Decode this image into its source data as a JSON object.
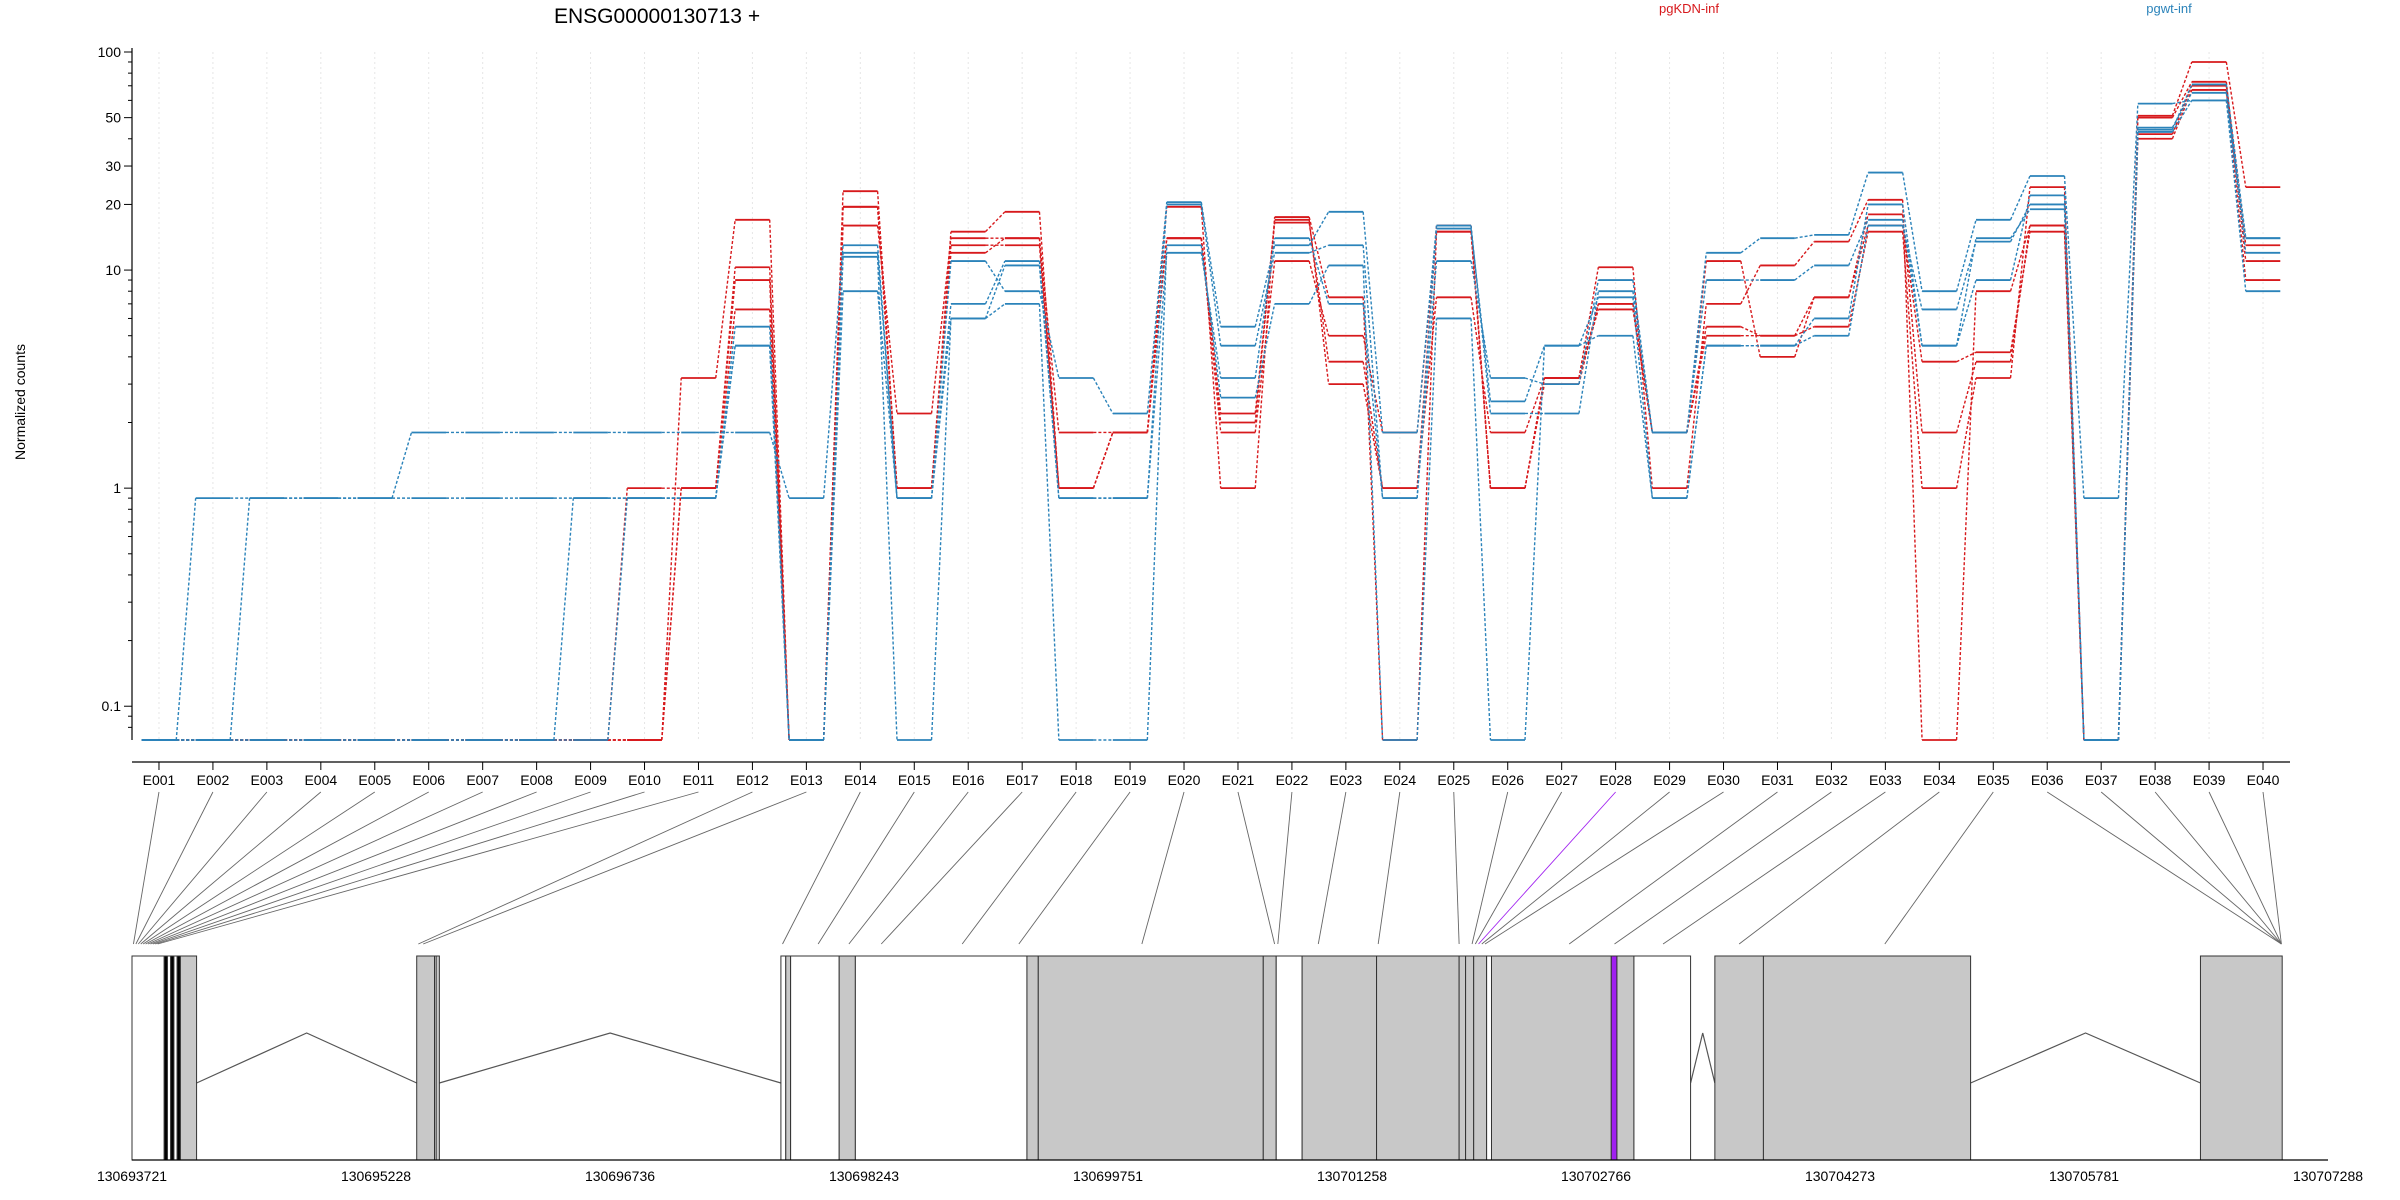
{
  "chart_data": {
    "type": "line",
    "title": "ENSG00000130713 +",
    "ylabel": "Normalized counts",
    "xlabel": "",
    "y_scale": "log",
    "ylim": [
      0.07,
      100
    ],
    "grid": "vertical dotted per exon",
    "legend_placement": "top",
    "y_ticks": [
      {
        "value": 0.1,
        "label": "0.1"
      },
      {
        "value": 1,
        "label": "1"
      },
      {
        "value": 10,
        "label": "10"
      },
      {
        "value": 20,
        "label": "20"
      },
      {
        "value": 30,
        "label": "30"
      },
      {
        "value": 50,
        "label": "50"
      },
      {
        "value": 100,
        "label": "100"
      }
    ],
    "categories": [
      "E001",
      "E002",
      "E003",
      "E004",
      "E005",
      "E006",
      "E007",
      "E008",
      "E009",
      "E010",
      "E011",
      "E012",
      "E013",
      "E014",
      "E015",
      "E016",
      "E017",
      "E018",
      "E019",
      "E020",
      "E021",
      "E022",
      "E023",
      "E024",
      "E025",
      "E026",
      "E027",
      "E028",
      "E029",
      "E030",
      "E031",
      "E032",
      "E033",
      "E034",
      "E035",
      "E036",
      "E037",
      "E038",
      "E039",
      "E040"
    ],
    "series": [
      {
        "group": "pgKDN-inf",
        "color": "#d7191c",
        "values": [
          0.07,
          0.07,
          0.07,
          0.07,
          0.07,
          0.07,
          0.07,
          0.07,
          0.07,
          0.07,
          1.0,
          10.3,
          0.07,
          23.0,
          1.0,
          15.0,
          18.5,
          1.0,
          1.8,
          19.5,
          1.0,
          17.5,
          7.5,
          0.07,
          15.0,
          1.0,
          3.2,
          10.3,
          1.0,
          7.0,
          10.5,
          13.5,
          21.0,
          0.07,
          8.0,
          16.0,
          0.07,
          51.0,
          90.0,
          24.0
        ]
      },
      {
        "group": "pgKDN-inf",
        "color": "#d7191c",
        "values": [
          0.07,
          0.07,
          0.07,
          0.07,
          0.07,
          0.07,
          0.07,
          0.07,
          0.07,
          0.07,
          3.2,
          17.0,
          0.07,
          16.0,
          2.2,
          14.0,
          14.0,
          1.8,
          1.8,
          14.0,
          2.2,
          16.5,
          3.8,
          1.0,
          7.5,
          1.8,
          3.2,
          6.6,
          1.8,
          5.5,
          5.0,
          5.5,
          15.0,
          1.0,
          3.2,
          24.0,
          0.07,
          40.0,
          67.0,
          9.0
        ]
      },
      {
        "group": "pgKDN-inf",
        "color": "#d7191c",
        "values": [
          0.07,
          0.07,
          0.07,
          0.07,
          0.07,
          0.07,
          0.07,
          0.07,
          0.07,
          1.0,
          1.0,
          6.6,
          0.07,
          19.5,
          1.0,
          13.0,
          13.0,
          1.0,
          1.8,
          14.0,
          1.8,
          11.0,
          5.0,
          1.8,
          15.0,
          1.0,
          3.0,
          7.0,
          1.8,
          5.0,
          5.0,
          7.5,
          16.0,
          3.8,
          4.2,
          15.0,
          0.07,
          42.0,
          70.0,
          13.0
        ]
      },
      {
        "group": "pgKDN-inf",
        "color": "#d7191c",
        "values": [
          0.07,
          0.07,
          0.07,
          0.07,
          0.07,
          0.07,
          0.07,
          0.07,
          0.07,
          0.07,
          1.0,
          9.0,
          0.07,
          19.5,
          1.0,
          12.0,
          14.0,
          1.0,
          1.8,
          14.0,
          2.0,
          17.0,
          3.0,
          1.0,
          16.0,
          1.0,
          3.2,
          7.0,
          1.8,
          11.0,
          4.0,
          7.5,
          18.0,
          1.8,
          3.8,
          16.0,
          0.07,
          50.0,
          73.0,
          11.0
        ]
      },
      {
        "group": "pgwt-inf",
        "color": "#2b83ba",
        "values": [
          0.07,
          0.9,
          0.9,
          0.9,
          0.9,
          1.8,
          1.8,
          1.8,
          1.8,
          1.8,
          1.8,
          1.8,
          0.9,
          13.0,
          0.9,
          11.0,
          8.0,
          3.2,
          2.2,
          20.5,
          5.5,
          13.0,
          18.5,
          1.8,
          16.0,
          2.2,
          2.2,
          8.0,
          1.8,
          12.0,
          14.0,
          14.5,
          28.0,
          8.0,
          17.0,
          27.0,
          0.9,
          58.0,
          60.0,
          14.0
        ]
      },
      {
        "group": "pgwt-inf",
        "color": "#2b83ba",
        "values": [
          0.07,
          0.07,
          0.9,
          0.9,
          0.9,
          0.9,
          0.9,
          0.9,
          0.9,
          0.9,
          0.9,
          4.5,
          0.07,
          12.0,
          0.9,
          7.0,
          11.0,
          0.9,
          0.9,
          20.0,
          4.5,
          12.0,
          13.0,
          0.9,
          11.0,
          3.2,
          3.0,
          9.0,
          1.8,
          9.0,
          9.0,
          10.5,
          17.0,
          4.5,
          9.0,
          22.0,
          0.07,
          45.0,
          65.0,
          12.0
        ]
      },
      {
        "group": "pgwt-inf",
        "color": "#2b83ba",
        "values": [
          0.07,
          0.07,
          0.07,
          0.07,
          0.07,
          0.07,
          0.07,
          0.07,
          0.9,
          0.9,
          0.9,
          5.5,
          0.07,
          11.5,
          0.07,
          6.0,
          7.0,
          0.07,
          0.07,
          13.0,
          2.6,
          7.0,
          10.5,
          0.07,
          6.0,
          0.07,
          4.5,
          5.0,
          0.9,
          4.5,
          4.5,
          5.0,
          16.0,
          6.6,
          13.5,
          20.0,
          0.07,
          43.0,
          60.0,
          8.0
        ]
      },
      {
        "group": "pgwt-inf",
        "color": "#2b83ba",
        "values": [
          0.07,
          0.07,
          0.07,
          0.07,
          0.07,
          0.07,
          0.07,
          0.07,
          0.07,
          0.9,
          0.9,
          4.5,
          0.07,
          8.0,
          0.9,
          6.0,
          10.5,
          0.9,
          0.9,
          12.0,
          3.2,
          14.0,
          7.0,
          0.9,
          15.5,
          2.5,
          4.5,
          7.5,
          0.9,
          4.5,
          4.5,
          6.0,
          20.0,
          4.5,
          14.0,
          19.0,
          0.07,
          44.0,
          71.0,
          14.0
        ]
      }
    ],
    "legend": [
      {
        "label": "pgKDN-inf",
        "color": "#d7191c"
      },
      {
        "label": "pgwt-inf",
        "color": "#2b83ba"
      }
    ],
    "gene_model": {
      "coordinate_labels": [
        "130693721",
        "130695228",
        "130696736",
        "130698243",
        "130699751",
        "130701258",
        "130702766",
        "130704273",
        "130705781",
        "130707288"
      ],
      "range": [
        130693721,
        130707288
      ],
      "exon_blocks": [
        [
          130693721,
          130693920,
          "#ffffff"
        ],
        [
          130693920,
          130693940,
          "#000000"
        ],
        [
          130693940,
          130693960,
          "#ffffff"
        ],
        [
          130693960,
          130693980,
          "#000000"
        ],
        [
          130693980,
          130694000,
          "#ffffff"
        ],
        [
          130694000,
          130694020,
          "#000000"
        ],
        [
          130694020,
          130694120,
          "#c8c8c8"
        ],
        [
          130695480,
          130695590,
          "#c8c8c8"
        ],
        [
          130695590,
          130695600,
          "#ffffff"
        ],
        [
          130695600,
          130695620,
          "#c8c8c8"
        ],
        [
          130697730,
          130697760,
          "#ffffff"
        ],
        [
          130697760,
          130697790,
          "#c8c8c8"
        ],
        [
          130697790,
          130698090,
          "#ffffff"
        ],
        [
          130698090,
          130698190,
          "#c8c8c8"
        ],
        [
          130698190,
          130699250,
          "#ffffff"
        ],
        [
          130699250,
          130699320,
          "#c8c8c8"
        ],
        [
          130699320,
          130700710,
          "#c8c8c8"
        ],
        [
          130700710,
          130700790,
          "#c8c8c8"
        ],
        [
          130700790,
          130700950,
          "#ffffff"
        ],
        [
          130700950,
          130701410,
          "#c8c8c8"
        ],
        [
          130701410,
          130701920,
          "#c8c8c8"
        ],
        [
          130701920,
          130701960,
          "#c8c8c8"
        ],
        [
          130701960,
          130702010,
          "#c8c8c8"
        ],
        [
          130702010,
          130702090,
          "#c8c8c8"
        ],
        [
          130702090,
          130702120,
          "#ffffff"
        ],
        [
          130702120,
          130702860,
          "#c8c8c8"
        ],
        [
          130702860,
          130702895,
          "#a020f0"
        ],
        [
          130702895,
          130703000,
          "#c8c8c8"
        ],
        [
          130703000,
          130703350,
          "#ffffff"
        ],
        [
          130703500,
          130703800,
          "#c8c8c8"
        ],
        [
          130703800,
          130705080,
          "#c8c8c8"
        ],
        [
          130706500,
          130707005,
          "#c8c8c8"
        ]
      ],
      "introns": [
        [
          130694120,
          130695480
        ],
        [
          130695620,
          130697730
        ],
        [
          130703350,
          130703500
        ],
        [
          130705080,
          130706500
        ]
      ],
      "exon_positions": [
        130693730,
        130693745,
        130693760,
        130693775,
        130693790,
        130693805,
        130693820,
        130693835,
        130693850,
        130693865,
        130693880,
        130695490,
        130695520,
        130697740,
        130697960,
        130698150,
        130698350,
        130698850,
        130699200,
        130699960,
        130700780,
        130700800,
        130701050,
        130701420,
        130701920,
        130702000,
        130702020,
        130702040,
        130702060,
        130702080,
        130702600,
        130702880,
        130703180,
        130703650,
        130704550,
        130707000
      ]
    }
  }
}
